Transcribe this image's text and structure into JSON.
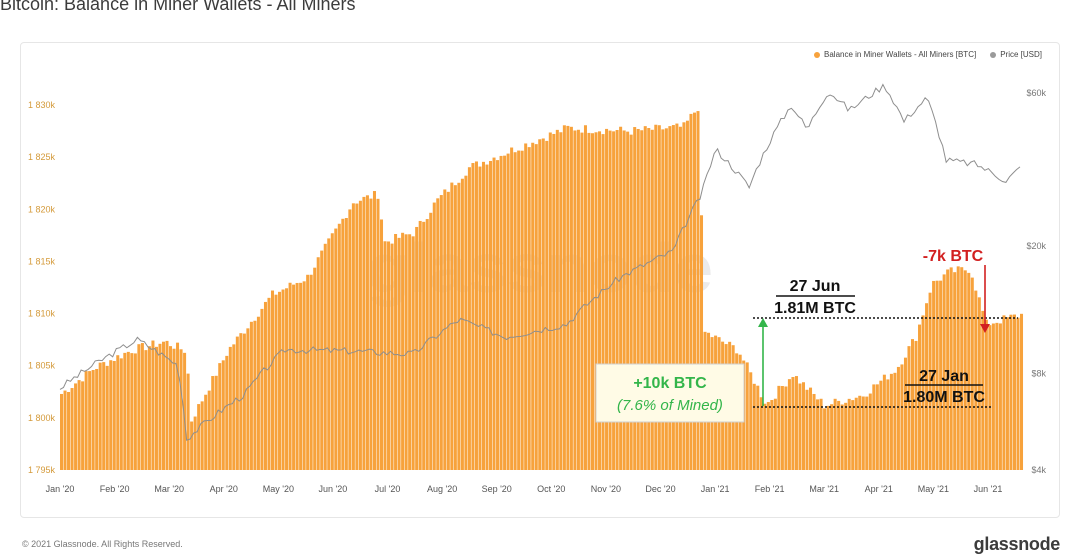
{
  "header": {
    "title": "Bitcoin: Balance in Miner Wallets - All Miners"
  },
  "footer": {
    "copyright": "© 2021 Glassnode. All Rights Reserved.",
    "brand": "glassnode"
  },
  "watermark": "glassnode",
  "colors": {
    "bar": "#f7a23c",
    "price": "#9a9a9a",
    "accent_green": "#33b54a",
    "accent_red": "#d22020",
    "axis_text_left": "#d49a3a",
    "axis_text_right": "#777777"
  },
  "chart_data": {
    "type": "bar",
    "legend_position": "top-right",
    "legend": [
      {
        "label": "Balance in Miner Wallets - All Miners [BTC]",
        "color": "#f7a23c"
      },
      {
        "label": "Price [USD]",
        "color": "#9a9a9a"
      }
    ],
    "x_ticks": [
      "Jan '20",
      "Feb '20",
      "Mar '20",
      "Apr '20",
      "May '20",
      "Jun '20",
      "Jul '20",
      "Aug '20",
      "Sep '20",
      "Oct '20",
      "Nov '20",
      "Dec '20",
      "Jan '21",
      "Feb '21",
      "Mar '21",
      "Apr '21",
      "May '21",
      "Jun '21"
    ],
    "y_left": {
      "ticks": [
        "1 795k",
        "1 800k",
        "1 805k",
        "1 810k",
        "1 815k",
        "1 820k",
        "1 825k",
        "1 830k"
      ],
      "range": [
        1795000,
        1831000
      ]
    },
    "y_right": {
      "ticks": [
        "$4k",
        "$8k",
        "$20k",
        "$60k"
      ],
      "scale": "log"
    },
    "balance_series": {
      "name": "Balance in Miner Wallets - All Miners [BTC]",
      "x_range": [
        "2020-01-01",
        "2021-06-30"
      ],
      "keyframes": [
        [
          "2020-01-01",
          1802300
        ],
        [
          "2020-01-20",
          1804800
        ],
        [
          "2020-02-10",
          1806500
        ],
        [
          "2020-02-29",
          1807300
        ],
        [
          "2020-03-12",
          1806400
        ],
        [
          "2020-03-15",
          1799800
        ],
        [
          "2020-04-05",
          1806500
        ],
        [
          "2020-04-30",
          1811800
        ],
        [
          "2020-05-20",
          1813500
        ],
        [
          "2020-06-15",
          1820700
        ],
        [
          "2020-06-30",
          1821500
        ],
        [
          "2020-07-02",
          1816800
        ],
        [
          "2020-07-20",
          1817800
        ],
        [
          "2020-08-01",
          1820700
        ],
        [
          "2020-08-20",
          1824000
        ],
        [
          "2020-09-15",
          1825800
        ],
        [
          "2020-10-15",
          1827800
        ],
        [
          "2020-11-20",
          1827500
        ],
        [
          "2020-12-20",
          1827900
        ],
        [
          "2020-12-28",
          1829800
        ],
        [
          "2021-01-01",
          1808200
        ],
        [
          "2021-01-20",
          1806500
        ],
        [
          "2021-02-05",
          1801300
        ],
        [
          "2021-02-20",
          1804200
        ],
        [
          "2021-03-10",
          1801200
        ],
        [
          "2021-04-01",
          1802200
        ],
        [
          "2021-04-20",
          1804700
        ],
        [
          "2021-05-01",
          1807800
        ],
        [
          "2021-05-10",
          1812800
        ],
        [
          "2021-05-20",
          1814000
        ],
        [
          "2021-06-01",
          1814300
        ],
        [
          "2021-06-10",
          1809000
        ],
        [
          "2021-06-30",
          1809900
        ]
      ]
    },
    "price_series": {
      "name": "Price [USD]",
      "keyframes": [
        [
          "2020-01-01",
          7200
        ],
        [
          "2020-02-14",
          10200
        ],
        [
          "2020-03-08",
          8500
        ],
        [
          "2020-03-13",
          5000
        ],
        [
          "2020-04-15",
          6900
        ],
        [
          "2020-05-08",
          9500
        ],
        [
          "2020-06-15",
          9400
        ],
        [
          "2020-07-20",
          9200
        ],
        [
          "2020-08-15",
          11800
        ],
        [
          "2020-09-10",
          10400
        ],
        [
          "2020-10-15",
          11400
        ],
        [
          "2020-11-15",
          16000
        ],
        [
          "2020-12-15",
          19300
        ],
        [
          "2020-12-31",
          29000
        ],
        [
          "2021-01-08",
          40000
        ],
        [
          "2021-01-27",
          30500
        ],
        [
          "2021-02-20",
          55000
        ],
        [
          "2021-03-01",
          46000
        ],
        [
          "2021-03-13",
          61000
        ],
        [
          "2021-03-25",
          53000
        ],
        [
          "2021-04-14",
          63500
        ],
        [
          "2021-04-25",
          49000
        ],
        [
          "2021-05-08",
          58000
        ],
        [
          "2021-05-19",
          37000
        ],
        [
          "2021-06-05",
          36000
        ],
        [
          "2021-06-22",
          32000
        ],
        [
          "2021-06-30",
          35000
        ]
      ]
    },
    "annotations": {
      "gain_label": "+10k BTC",
      "gain_sub": "(7.6% of Mined)",
      "jun_label": "27 Jun",
      "jun_value": "1.81M BTC",
      "jan_label": "27 Jan",
      "jan_value": "1.80M BTC",
      "drop_label": "-7k BTC"
    }
  }
}
